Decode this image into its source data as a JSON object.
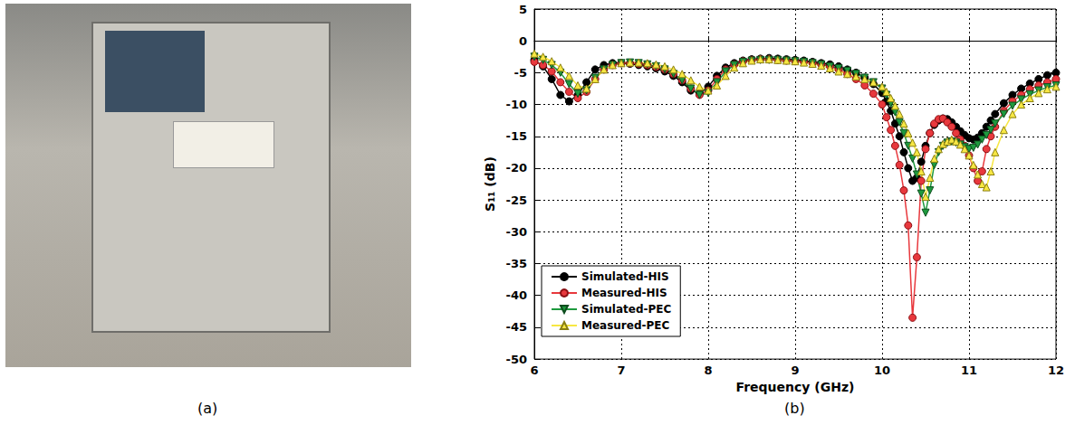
{
  "photo": {
    "caption": "(a)"
  },
  "chart_data": {
    "type": "line",
    "caption": "(b)",
    "xlabel": "Frequency (GHz)",
    "ylabel": "S₁₁ (dB)",
    "xlim": [
      6,
      12
    ],
    "xticks": [
      6,
      7,
      8,
      9,
      10,
      11,
      12
    ],
    "ylim": [
      -50,
      5
    ],
    "yticks": [
      -50,
      -45,
      -40,
      -35,
      -30,
      -25,
      -20,
      -15,
      -10,
      -5,
      0,
      5
    ],
    "grid": true,
    "legend": "bottom-left",
    "x": [
      6.0,
      6.1,
      6.2,
      6.3,
      6.4,
      6.5,
      6.6,
      6.7,
      6.8,
      6.9,
      7.0,
      7.1,
      7.2,
      7.3,
      7.4,
      7.5,
      7.6,
      7.7,
      7.8,
      7.9,
      8.0,
      8.1,
      8.2,
      8.3,
      8.4,
      8.5,
      8.6,
      8.7,
      8.8,
      8.9,
      9.0,
      9.1,
      9.2,
      9.3,
      9.4,
      9.5,
      9.6,
      9.7,
      9.8,
      9.9,
      10.0,
      10.05,
      10.1,
      10.15,
      10.2,
      10.25,
      10.3,
      10.35,
      10.4,
      10.45,
      10.5,
      10.55,
      10.6,
      10.65,
      10.7,
      10.75,
      10.8,
      10.85,
      10.9,
      10.95,
      11.0,
      11.05,
      11.1,
      11.15,
      11.2,
      11.25,
      11.3,
      11.4,
      11.5,
      11.6,
      11.7,
      11.8,
      11.9,
      12.0
    ],
    "series": [
      {
        "name": "Simulated-HIS",
        "color": "#000000",
        "marker": "circle",
        "values": [
          -3,
          -4,
          -6,
          -8.5,
          -9.5,
          -8.5,
          -6.5,
          -4.5,
          -3.8,
          -3.5,
          -3.5,
          -3.6,
          -3.8,
          -4,
          -4.3,
          -4.8,
          -5.5,
          -6.5,
          -7.8,
          -8.2,
          -7.2,
          -5.5,
          -4.2,
          -3.5,
          -3.1,
          -2.9,
          -2.8,
          -2.7,
          -2.8,
          -2.9,
          -3,
          -3.1,
          -3.3,
          -3.5,
          -3.7,
          -4,
          -4.5,
          -5,
          -5.8,
          -6.8,
          -8.2,
          -9.5,
          -11,
          -13,
          -15,
          -17.5,
          -20,
          -22,
          -21.5,
          -19,
          -16.5,
          -14.5,
          -13.2,
          -12.5,
          -12.2,
          -12.3,
          -12.8,
          -13.5,
          -14.2,
          -14.8,
          -15.3,
          -15.5,
          -15.2,
          -14.5,
          -13.5,
          -12.5,
          -11.5,
          -9.8,
          -8.5,
          -7.5,
          -6.7,
          -6,
          -5.4,
          -5
        ]
      },
      {
        "name": "Measured-HIS",
        "color": "#e8383d",
        "marker": "circle",
        "values": [
          -3.3,
          -3.8,
          -4.8,
          -6.5,
          -8,
          -9,
          -8,
          -6,
          -4.5,
          -3.8,
          -3.5,
          -3.5,
          -3.6,
          -3.8,
          -4.1,
          -4.5,
          -5.2,
          -6.2,
          -7.5,
          -8.5,
          -7.8,
          -6,
          -4.5,
          -3.7,
          -3.2,
          -3,
          -2.9,
          -2.9,
          -3,
          -3.1,
          -3.2,
          -3.3,
          -3.5,
          -3.7,
          -4,
          -4.5,
          -5.2,
          -6,
          -7,
          -8.3,
          -10,
          -12,
          -14,
          -16.5,
          -19.5,
          -23.5,
          -29,
          -43.5,
          -34,
          -22,
          -17,
          -14.5,
          -13,
          -12.3,
          -12.2,
          -12.8,
          -13.5,
          -14.5,
          -15.5,
          -16.5,
          -18,
          -20,
          -22,
          -20.5,
          -17,
          -15,
          -13.5,
          -11,
          -9.5,
          -8.5,
          -7.6,
          -7,
          -6.5,
          -6
        ]
      },
      {
        "name": "Simulated-PEC",
        "color": "#1e9a3e",
        "marker": "triangle-down",
        "values": [
          -2.5,
          -3,
          -3.8,
          -5,
          -6.8,
          -8.3,
          -7.8,
          -5.8,
          -4.5,
          -3.8,
          -3.5,
          -3.4,
          -3.5,
          -3.7,
          -4,
          -4.5,
          -5.2,
          -6.2,
          -7.5,
          -8.5,
          -8.2,
          -6.5,
          -4.8,
          -3.8,
          -3.3,
          -3.1,
          -3,
          -3,
          -3,
          -3.1,
          -3.2,
          -3.3,
          -3.5,
          -3.7,
          -4,
          -4.3,
          -4.7,
          -5.2,
          -5.8,
          -6.5,
          -7.5,
          -8.5,
          -9.8,
          -11.2,
          -12.8,
          -14.5,
          -16.5,
          -18.5,
          -21,
          -24,
          -27,
          -23.5,
          -19.5,
          -17.5,
          -16.5,
          -16,
          -15.8,
          -16,
          -16.3,
          -16.7,
          -17,
          -16.8,
          -16.3,
          -15.5,
          -14.8,
          -14,
          -13,
          -11.5,
          -10.2,
          -9.2,
          -8.4,
          -7.8,
          -7.3,
          -7
        ]
      },
      {
        "name": "Measured-PEC",
        "color": "#f7e743",
        "marker": "triangle-up",
        "values": [
          -2,
          -2.5,
          -3.2,
          -4.2,
          -5.5,
          -7,
          -7.5,
          -6,
          -4.5,
          -3.8,
          -3.5,
          -3.4,
          -3.4,
          -3.5,
          -3.7,
          -4,
          -4.5,
          -5.2,
          -6.2,
          -7.2,
          -7.8,
          -7,
          -5.5,
          -4.2,
          -3.5,
          -3.1,
          -2.9,
          -2.9,
          -3,
          -3.1,
          -3.2,
          -3.4,
          -3.6,
          -3.9,
          -4.3,
          -4.8,
          -5.2,
          -5.6,
          -6,
          -6.5,
          -7.2,
          -8,
          -9,
          -10.2,
          -11.5,
          -13,
          -14.5,
          -16,
          -17.5,
          -20.5,
          -24.5,
          -21.5,
          -18.5,
          -17,
          -16.2,
          -15.8,
          -15.5,
          -15.8,
          -16.3,
          -17,
          -18,
          -19.5,
          -21,
          -22.5,
          -23,
          -20.5,
          -17.5,
          -14,
          -11.5,
          -10,
          -9,
          -8.2,
          -7.6,
          -7.2
        ]
      }
    ]
  }
}
